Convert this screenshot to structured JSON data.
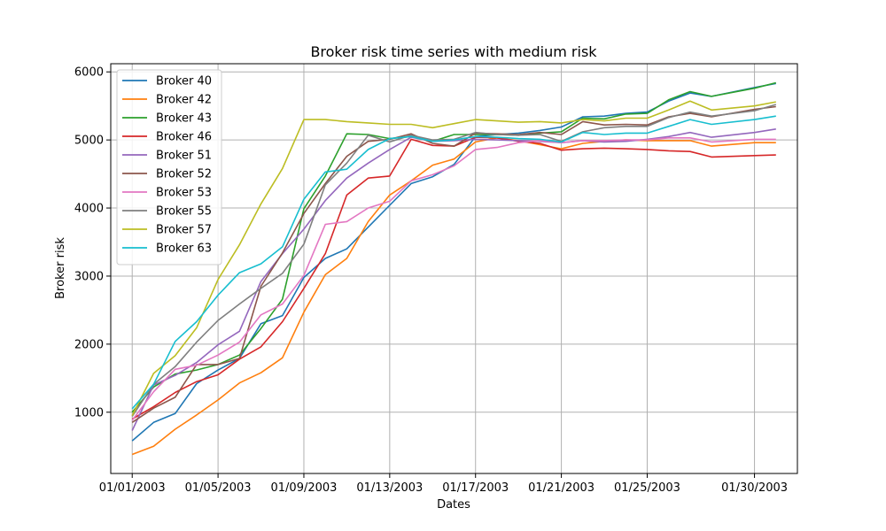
{
  "chart_data": {
    "type": "line",
    "title": "Broker risk time series with medium risk",
    "xlabel": "Dates",
    "ylabel": "Broker risk",
    "x": [
      "01/01/2003",
      "01/02/2003",
      "01/03/2003",
      "01/04/2003",
      "01/05/2003",
      "01/06/2003",
      "01/07/2003",
      "01/08/2003",
      "01/09/2003",
      "01/10/2003",
      "01/11/2003",
      "01/12/2003",
      "01/13/2003",
      "01/14/2003",
      "01/15/2003",
      "01/16/2003",
      "01/17/2003",
      "01/18/2003",
      "01/19/2003",
      "01/20/2003",
      "01/21/2003",
      "01/22/2003",
      "01/23/2003",
      "01/24/2003",
      "01/25/2003",
      "01/26/2003",
      "01/27/2003",
      "01/28/2003",
      "01/30/2003",
      "01/31/2003"
    ],
    "x_ticks": [
      {
        "date": "01/01/2003",
        "label": "01/01/2003"
      },
      {
        "date": "01/05/2003",
        "label": "01/05/2003"
      },
      {
        "date": "01/09/2003",
        "label": "01/09/2003"
      },
      {
        "date": "01/13/2003",
        "label": "01/13/2003"
      },
      {
        "date": "01/17/2003",
        "label": "01/17/2003"
      },
      {
        "date": "01/21/2003",
        "label": "01/21/2003"
      },
      {
        "date": "01/25/2003",
        "label": "01/25/2003"
      },
      {
        "date": "01/30/2003",
        "label": "01/30/2003"
      }
    ],
    "y_ticks": [
      1000,
      2000,
      3000,
      4000,
      5000,
      6000
    ],
    "ylim": [
      100,
      6120
    ],
    "xlim": [
      "12/31/2002",
      "02/01/2003"
    ],
    "grid": true,
    "legend_position": "upper-left",
    "series": [
      {
        "name": "Broker 40",
        "color": "#1f77b4",
        "values": [
          580,
          850,
          980,
          1420,
          1620,
          1790,
          2300,
          2420,
          2980,
          3260,
          3400,
          3720,
          4040,
          4360,
          4460,
          4640,
          5050,
          5080,
          5100,
          5140,
          5190,
          5340,
          5350,
          5390,
          5410,
          5570,
          5690,
          5640,
          5770,
          5830
        ]
      },
      {
        "name": "Broker 42",
        "color": "#ff7f0e",
        "values": [
          380,
          500,
          750,
          960,
          1180,
          1430,
          1580,
          1800,
          2470,
          3020,
          3260,
          3800,
          4190,
          4400,
          4630,
          4720,
          4970,
          5030,
          4990,
          4930,
          4870,
          4950,
          4980,
          5000,
          4990,
          4990,
          4990,
          4910,
          4960,
          4960
        ]
      },
      {
        "name": "Broker 43",
        "color": "#2ca02c",
        "values": [
          1000,
          1370,
          1560,
          1620,
          1700,
          1840,
          2230,
          2660,
          3990,
          4470,
          5090,
          5080,
          5020,
          5050,
          4980,
          5080,
          5080,
          5080,
          5070,
          5100,
          5120,
          5320,
          5310,
          5380,
          5390,
          5590,
          5710,
          5640,
          5760,
          5840
        ]
      },
      {
        "name": "Broker 46",
        "color": "#d62728",
        "values": [
          900,
          1080,
          1290,
          1450,
          1550,
          1780,
          1960,
          2330,
          2820,
          3330,
          4190,
          4440,
          4470,
          5010,
          4920,
          4910,
          5040,
          5030,
          4980,
          4950,
          4850,
          4870,
          4880,
          4870,
          4860,
          4840,
          4830,
          4750,
          4770,
          4780
        ]
      },
      {
        "name": "Broker 51",
        "color": "#9467bd",
        "values": [
          730,
          1400,
          1540,
          1730,
          1990,
          2190,
          2920,
          3330,
          3690,
          4110,
          4440,
          4660,
          4860,
          5040,
          4980,
          4990,
          5010,
          5000,
          4990,
          4980,
          4960,
          4990,
          4970,
          4980,
          5010,
          5050,
          5110,
          5040,
          5110,
          5160
        ]
      },
      {
        "name": "Broker 52",
        "color": "#8c564b",
        "values": [
          850,
          1060,
          1220,
          1700,
          1700,
          1790,
          2850,
          3340,
          3920,
          4360,
          4760,
          4980,
          5010,
          5090,
          4950,
          4910,
          5100,
          5090,
          5080,
          5110,
          5080,
          5270,
          5220,
          5230,
          5220,
          5340,
          5390,
          5340,
          5450,
          5490
        ]
      },
      {
        "name": "Broker 53",
        "color": "#e377c2",
        "values": [
          880,
          1300,
          1630,
          1690,
          1840,
          2030,
          2430,
          2590,
          3010,
          3760,
          3800,
          4000,
          4100,
          4400,
          4490,
          4620,
          4860,
          4890,
          4960,
          4990,
          4960,
          4990,
          4990,
          5000,
          5000,
          5030,
          5030,
          4970,
          5010,
          5010
        ]
      },
      {
        "name": "Broker 55",
        "color": "#7f7f7f",
        "values": [
          940,
          1410,
          1670,
          2030,
          2350,
          2590,
          2820,
          3040,
          3470,
          4340,
          4660,
          5070,
          4970,
          5070,
          5000,
          5010,
          5110,
          5080,
          5070,
          5080,
          4980,
          5120,
          5180,
          5200,
          5200,
          5330,
          5410,
          5350,
          5430,
          5520
        ]
      },
      {
        "name": "Broker 57",
        "color": "#bcbd22",
        "values": [
          950,
          1570,
          1830,
          2240,
          2950,
          3460,
          4060,
          4580,
          5300,
          5300,
          5270,
          5250,
          5230,
          5230,
          5180,
          5240,
          5300,
          5280,
          5260,
          5270,
          5250,
          5300,
          5280,
          5320,
          5320,
          5440,
          5570,
          5440,
          5500,
          5560
        ]
      },
      {
        "name": "Broker 63",
        "color": "#17becf",
        "values": [
          1050,
          1410,
          2040,
          2330,
          2720,
          3050,
          3180,
          3430,
          4130,
          4530,
          4570,
          4860,
          5020,
          5050,
          4980,
          5000,
          5050,
          5040,
          5020,
          5010,
          4970,
          5110,
          5080,
          5100,
          5100,
          5200,
          5300,
          5230,
          5300,
          5350
        ]
      }
    ]
  }
}
